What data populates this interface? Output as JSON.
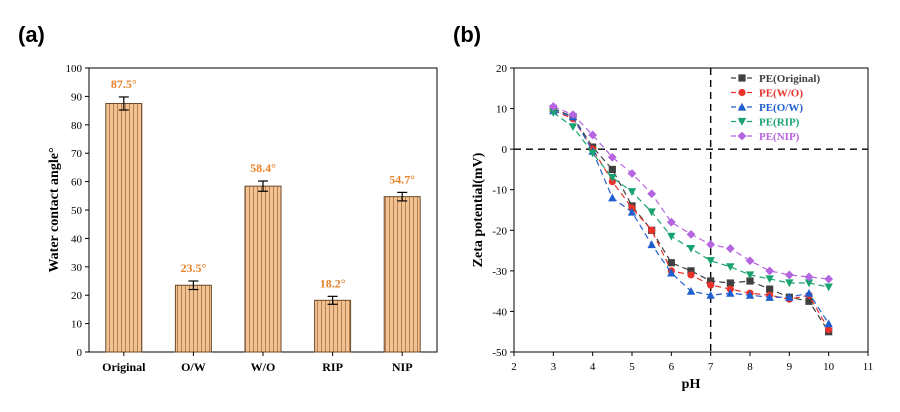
{
  "panels": {
    "a": "(a)",
    "b": "(b)"
  },
  "chart_data": [
    {
      "type": "bar",
      "title": "",
      "categories": [
        "Original",
        "O/W",
        "W/O",
        "RIP",
        "NIP"
      ],
      "values": [
        87.5,
        23.5,
        58.4,
        18.2,
        54.7
      ],
      "errors": [
        2.3,
        1.5,
        1.8,
        1.4,
        1.5
      ],
      "data_labels": [
        "87.5°",
        "23.5°",
        "58.4°",
        "18.2°",
        "54.7°"
      ],
      "xlabel": "",
      "ylabel": "Water contact angle°",
      "ylim": [
        0,
        100
      ],
      "yticks": [
        0,
        10,
        20,
        30,
        40,
        50,
        60,
        70,
        80,
        90,
        100
      ],
      "colors": {
        "bar": "#f2c293",
        "hatch": "#b07a48",
        "label": "#e8822a"
      }
    },
    {
      "type": "line",
      "title": "",
      "xlabel": "pH",
      "ylabel": "Zeta potential(mV)",
      "xlim": [
        2,
        11
      ],
      "ylim": [
        -50,
        20
      ],
      "xticks": [
        2,
        3,
        4,
        5,
        6,
        7,
        8,
        9,
        10,
        11
      ],
      "yticks": [
        -50,
        -40,
        -30,
        -20,
        -10,
        0,
        10,
        20
      ],
      "reference_lines": {
        "x": 7,
        "y": 0
      },
      "legend_position": "top-right",
      "series": [
        {
          "name": "PE(Original)",
          "color": "#404040",
          "marker": "square",
          "x": [
            3,
            3.5,
            4,
            4.5,
            5,
            5.5,
            6,
            6.5,
            7,
            7.5,
            8,
            8.5,
            9,
            9.5,
            10
          ],
          "y": [
            10,
            8,
            0.5,
            -5,
            -14,
            -20,
            -28,
            -30,
            -32.5,
            -33,
            -32.5,
            -34.5,
            -36.5,
            -37.5,
            -45
          ]
        },
        {
          "name": "PE(W/O)",
          "color": "#e8322a",
          "marker": "circle",
          "x": [
            3,
            3.5,
            4,
            4.5,
            5,
            5.5,
            6,
            6.5,
            7,
            7.5,
            8,
            8.5,
            9,
            9.5,
            10
          ],
          "y": [
            9.5,
            7.5,
            0,
            -8,
            -14.5,
            -20,
            -30,
            -31,
            -33.5,
            -34.5,
            -35.5,
            -36,
            -37,
            -36,
            -44.5
          ]
        },
        {
          "name": "PE(O/W)",
          "color": "#1f5ecf",
          "marker": "triangle-up",
          "x": [
            3,
            3.5,
            4,
            4.5,
            5,
            5.5,
            6,
            6.5,
            7,
            7.5,
            8,
            8.5,
            9,
            9.5,
            10
          ],
          "y": [
            9.5,
            8,
            -0.5,
            -12,
            -15.5,
            -23.5,
            -30.5,
            -35,
            -36,
            -35.5,
            -36,
            -36.5,
            -36.5,
            -35.5,
            -43
          ]
        },
        {
          "name": "PE(RIP)",
          "color": "#1aa36f",
          "marker": "triangle-down",
          "x": [
            3,
            3.5,
            4,
            4.5,
            5,
            5.5,
            6,
            6.5,
            7,
            7.5,
            8,
            8.5,
            9,
            9.5,
            10
          ],
          "y": [
            9,
            5.5,
            -1,
            -7,
            -10.5,
            -15.5,
            -21.5,
            -24.5,
            -27.5,
            -29,
            -31,
            -32,
            -33,
            -33,
            -34
          ]
        },
        {
          "name": "PE(NIP)",
          "color": "#b565e0",
          "marker": "diamond",
          "x": [
            3,
            3.5,
            4,
            4.5,
            5,
            5.5,
            6,
            6.5,
            7,
            7.5,
            8,
            8.5,
            9,
            9.5,
            10
          ],
          "y": [
            10.5,
            8.5,
            3.5,
            -2,
            -6,
            -11,
            -18,
            -21,
            -23.5,
            -24.5,
            -27.5,
            -30,
            -31,
            -31.5,
            -32
          ]
        }
      ]
    }
  ]
}
